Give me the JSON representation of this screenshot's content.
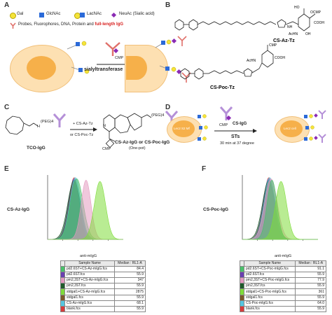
{
  "panels": {
    "A": {
      "label": "A",
      "legend": {
        "gal": "Gal",
        "glcnac": "GlcNAc",
        "lacnac": "LacNAc",
        "neuac": "NeuAc (Sialic acid)",
        "probes_prefix": "Probes, Fluorophores, DNA, Protein and ",
        "probes_highlight": "full-length IgG"
      },
      "reagent": "CMP",
      "enzyme": "sialyltransferase"
    },
    "B": {
      "label": "B",
      "compound1": "CS-Az-Tz",
      "compound2": "CS-Poc-Tz",
      "groups": [
        "CMP",
        "COOH",
        "NH",
        "HO",
        "OH",
        "AcHN",
        "OCMP"
      ]
    },
    "C": {
      "label": "C",
      "peg": "(PEG)4",
      "reagents": [
        "+ CS-Az-Tz",
        "or CS-Poc-Tz"
      ],
      "start": "TCO-IgG",
      "product": "CS-Az-IgG or CS-Poc-IgG",
      "note": "(One-pot)",
      "cmp": "CMP",
      "h_label": "H",
      "n_label": "N"
    },
    "D": {
      "label": "D",
      "cell1": "Lec2 S2 Mf",
      "cell2": "Lec2 cell",
      "reagent_top": "CS-IgG",
      "cmp": "CMP",
      "enzyme": "STs",
      "condition": "30 min at 37 degree"
    },
    "E": {
      "label": "E",
      "ylabel": "CS-Az-IgG",
      "xlabel": "anti-mIgG",
      "table": {
        "headers": [
          "Sample Name",
          "Median : RL1-A"
        ],
        "rows": [
          {
            "name": "pd2.6ST+CS-Az-mIgG.fcs",
            "median": "84.4",
            "color": "#49c06a"
          },
          {
            "name": "pd2.6ST.fcs",
            "median": "55.9",
            "color": "#6a3fb0"
          },
          {
            "name": "pm2,3ST+CS-Az-mIgG.fcs",
            "median": "347",
            "color": "#e39ac0"
          },
          {
            "name": "pm2,3ST.fcs",
            "median": "55.9",
            "color": "#1f5a2c"
          },
          {
            "name": "stdgal1+CS-Az-mIgG.fcs",
            "median": "2875",
            "color": "#7fdc3b"
          },
          {
            "name": "stdgal1.fcs",
            "median": "55.9",
            "color": "#7a5a2a"
          },
          {
            "name": "CS-Az-mIgG.fcs",
            "median": "68.1",
            "color": "#55c6e0"
          },
          {
            "name": "blank.fcs",
            "median": "55.9",
            "color": "#d83a3a"
          }
        ]
      }
    },
    "F": {
      "label": "F",
      "ylabel": "CS-Poc-IgG",
      "xlabel": "anti-mIgG",
      "table": {
        "headers": [
          "Sample Name",
          "Median : RL1-A"
        ],
        "rows": [
          {
            "name": "pd2.6ST+CS-Poc-mIgG.fcs",
            "median": "91.1",
            "color": "#49c06a"
          },
          {
            "name": "pd2.6ST.fcs",
            "median": "55.9",
            "color": "#6a3fb0"
          },
          {
            "name": "pm2,3ST+CS-Poc-mIgG.fcs",
            "median": "77.9",
            "color": "#e39ac0"
          },
          {
            "name": "pm2,3ST.fcs",
            "median": "55.9",
            "color": "#1f5a2c"
          },
          {
            "name": "stdgal1+CS-Poc-mIgG.fcs",
            "median": "361",
            "color": "#7fdc3b"
          },
          {
            "name": "stdgal1.fcs",
            "median": "55.9",
            "color": "#7a5a2a"
          },
          {
            "name": "CS-Poc-mIgG.fcs",
            "median": "64.0",
            "color": "#55c6e0"
          },
          {
            "name": "blank.fcs",
            "median": "55.9",
            "color": "#d83a3a"
          }
        ]
      }
    }
  },
  "chart_data": [
    {
      "type": "area",
      "panel": "E",
      "xlabel": "anti-mIgG",
      "ylabel": "",
      "x_scale": "log",
      "series": [
        {
          "name": "blank.fcs",
          "peak": 55.9,
          "color": "#d83a3a"
        },
        {
          "name": "pd2.6ST.fcs",
          "peak": 55.9,
          "color": "#6a3fb0"
        },
        {
          "name": "pm2,3ST.fcs",
          "peak": 55.9,
          "color": "#1f5a2c"
        },
        {
          "name": "stdgal1.fcs",
          "peak": 55.9,
          "color": "#7a5a2a"
        },
        {
          "name": "CS-Az-mIgG.fcs",
          "peak": 68.1,
          "color": "#55c6e0"
        },
        {
          "name": "pd2.6ST+CS-Az-mIgG.fcs",
          "peak": 84.4,
          "color": "#49c06a"
        },
        {
          "name": "pm2,3ST+CS-Az-mIgG.fcs",
          "peak": 347,
          "color": "#e39ac0"
        },
        {
          "name": "stdgal1+CS-Az-mIgG.fcs",
          "peak": 2875,
          "color": "#7fdc3b"
        }
      ]
    },
    {
      "type": "area",
      "panel": "F",
      "xlabel": "anti-mIgG",
      "ylabel": "",
      "x_scale": "log",
      "series": [
        {
          "name": "blank.fcs",
          "peak": 55.9,
          "color": "#d83a3a"
        },
        {
          "name": "pd2.6ST.fcs",
          "peak": 55.9,
          "color": "#6a3fb0"
        },
        {
          "name": "pm2,3ST.fcs",
          "peak": 55.9,
          "color": "#1f5a2c"
        },
        {
          "name": "stdgal1.fcs",
          "peak": 55.9,
          "color": "#7a5a2a"
        },
        {
          "name": "CS-Poc-mIgG.fcs",
          "peak": 64.0,
          "color": "#55c6e0"
        },
        {
          "name": "pm2,3ST+CS-Poc-mIgG.fcs",
          "peak": 77.9,
          "color": "#e39ac0"
        },
        {
          "name": "pd2.6ST+CS-Poc-mIgG.fcs",
          "peak": 91.1,
          "color": "#49c06a"
        },
        {
          "name": "stdgal1+CS-Poc-mIgG.fcs",
          "peak": 361,
          "color": "#7fdc3b"
        }
      ]
    }
  ]
}
